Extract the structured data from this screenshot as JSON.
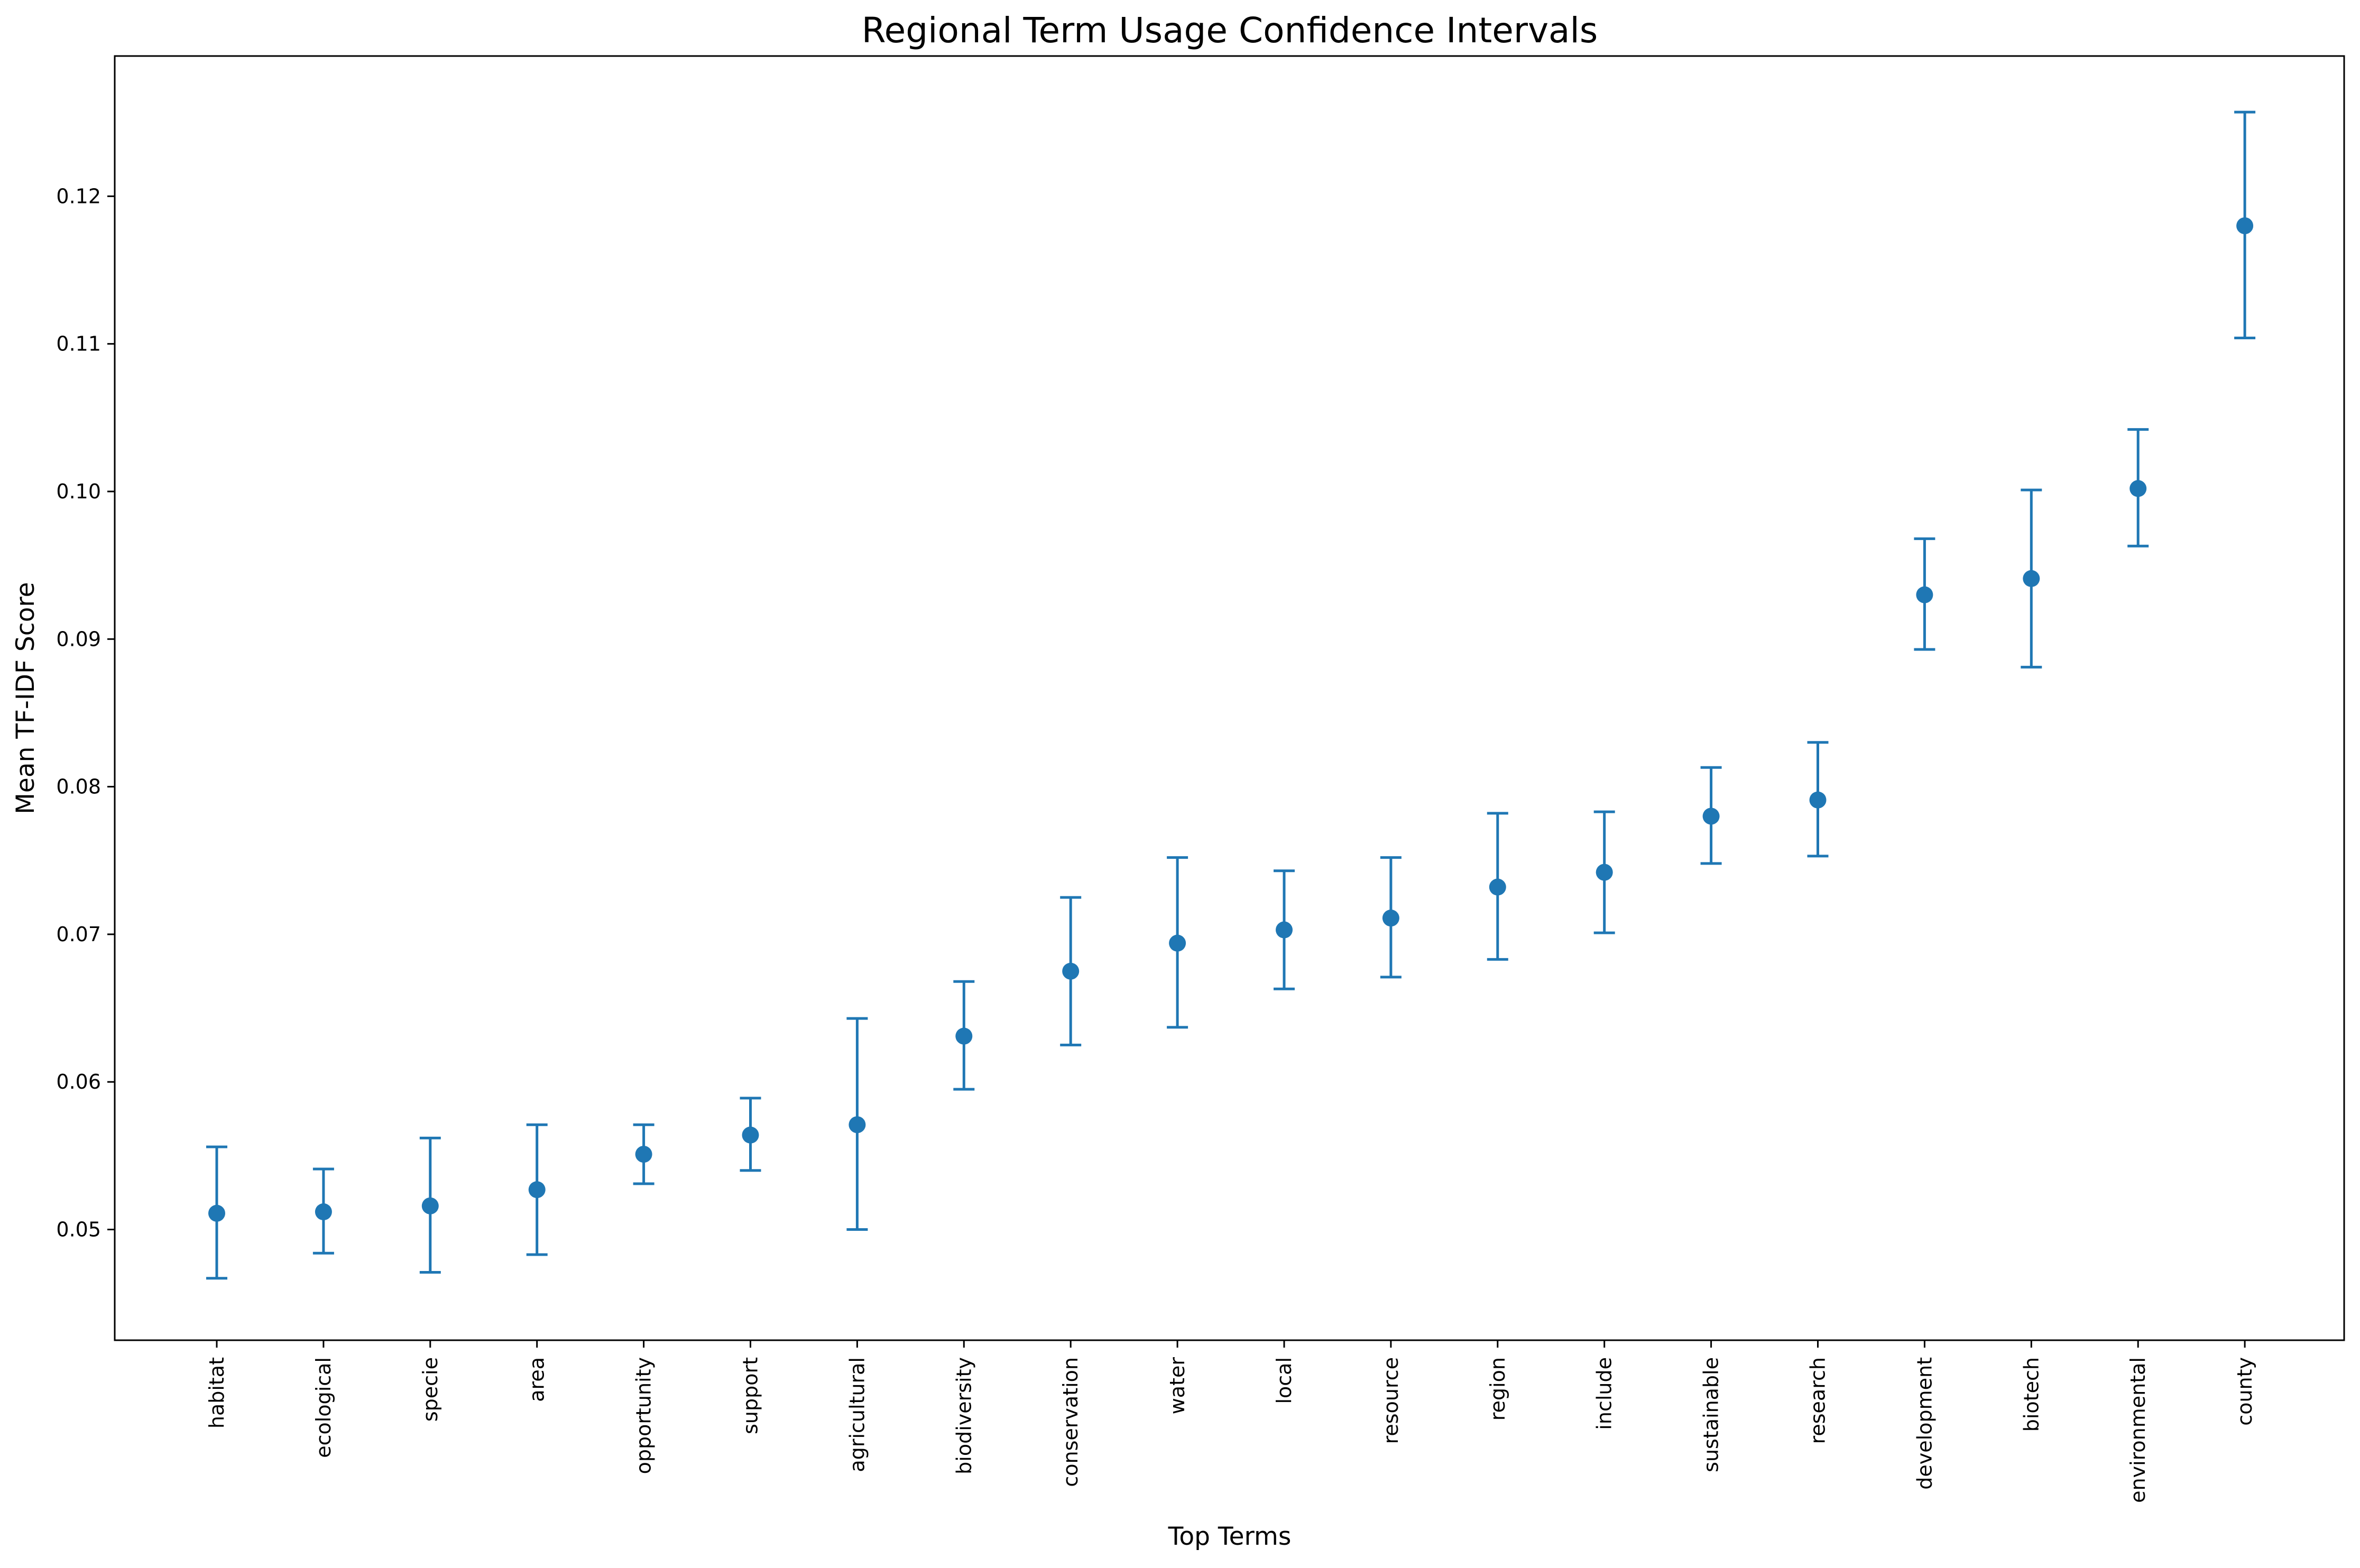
{
  "chart_data": {
    "type": "scatter",
    "title": "Regional Term Usage Confidence Intervals",
    "xlabel": "Top Terms",
    "ylabel": "Mean TF-IDF Score",
    "ylim": [
      0.0425,
      0.1295
    ],
    "yticks": [
      0.05,
      0.06,
      0.07,
      0.08,
      0.09,
      0.1,
      0.11,
      0.12
    ],
    "ytick_labels": [
      "0.05",
      "0.06",
      "0.07",
      "0.08",
      "0.09",
      "0.10",
      "0.11",
      "0.12"
    ],
    "grid": false,
    "color": "#1f77b4",
    "categories": [
      "habitat",
      "ecological",
      "specie",
      "area",
      "opportunity",
      "support",
      "agricultural",
      "biodiversity",
      "conservation",
      "water",
      "local",
      "resource",
      "region",
      "include",
      "sustainable",
      "research",
      "development",
      "biotech",
      "environmental",
      "county"
    ],
    "series": [
      {
        "values": [
          0.0511,
          0.0512,
          0.0516,
          0.0527,
          0.0551,
          0.0564,
          0.0571,
          0.0631,
          0.0675,
          0.0694,
          0.0703,
          0.0711,
          0.0732,
          0.0742,
          0.078,
          0.0791,
          0.093,
          0.0941,
          0.1002,
          0.118
        ],
        "lower": [
          0.0467,
          0.0484,
          0.0471,
          0.0483,
          0.0531,
          0.054,
          0.05,
          0.0595,
          0.0625,
          0.0637,
          0.0663,
          0.0671,
          0.0683,
          0.0701,
          0.0748,
          0.0753,
          0.0893,
          0.0881,
          0.0963,
          0.1104
        ],
        "upper": [
          0.0556,
          0.0541,
          0.0562,
          0.0571,
          0.0571,
          0.0589,
          0.0643,
          0.0668,
          0.0725,
          0.0752,
          0.0743,
          0.0752,
          0.0782,
          0.0783,
          0.0813,
          0.083,
          0.0968,
          0.1001,
          0.1042,
          0.1257
        ]
      }
    ]
  }
}
